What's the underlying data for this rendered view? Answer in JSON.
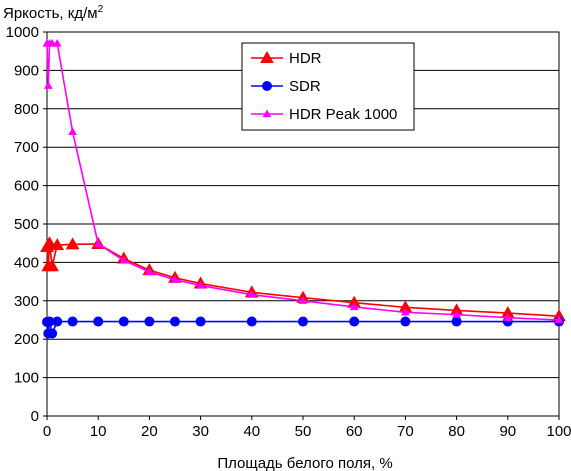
{
  "chart_data": {
    "type": "line",
    "ylabel": "Яркость, кд/м",
    "ylabel_sup": "2",
    "xlabel": "Площадь белого поля, %",
    "xlim": [
      0,
      100
    ],
    "ylim": [
      0,
      1000
    ],
    "x_ticks": [
      0,
      10,
      20,
      30,
      40,
      50,
      60,
      70,
      80,
      90,
      100
    ],
    "y_ticks": [
      0,
      100,
      200,
      300,
      400,
      500,
      600,
      700,
      800,
      900,
      1000
    ],
    "grid": "horizontal",
    "legend_position": "top-center",
    "series": [
      {
        "name": "HDR",
        "color": "#ff0000",
        "marker": "triangle",
        "points": [
          [
            0,
            440
          ],
          [
            0.25,
            390
          ],
          [
            0.5,
            450
          ],
          [
            1,
            390
          ],
          [
            2,
            445
          ],
          [
            5,
            447
          ],
          [
            10,
            448
          ],
          [
            15,
            410
          ],
          [
            20,
            380
          ],
          [
            25,
            360
          ],
          [
            30,
            345
          ],
          [
            40,
            322
          ],
          [
            50,
            308
          ],
          [
            60,
            295
          ],
          [
            70,
            283
          ],
          [
            80,
            275
          ],
          [
            90,
            268
          ],
          [
            100,
            260
          ]
        ]
      },
      {
        "name": "SDR",
        "color": "#0000ff",
        "marker": "circle",
        "points": [
          [
            0,
            245
          ],
          [
            0.25,
            215
          ],
          [
            0.5,
            246
          ],
          [
            1,
            215
          ],
          [
            2,
            246
          ],
          [
            5,
            246
          ],
          [
            10,
            246
          ],
          [
            15,
            246
          ],
          [
            20,
            246
          ],
          [
            25,
            246
          ],
          [
            30,
            246
          ],
          [
            40,
            246
          ],
          [
            50,
            246
          ],
          [
            60,
            246
          ],
          [
            70,
            246
          ],
          [
            80,
            246
          ],
          [
            90,
            246
          ],
          [
            100,
            246
          ]
        ]
      },
      {
        "name": "HDR Peak 1000",
        "color": "#ff00ff",
        "marker": "small-triangle",
        "points": [
          [
            0,
            970
          ],
          [
            0.25,
            860
          ],
          [
            0.5,
            970
          ],
          [
            1,
            970
          ],
          [
            2,
            970
          ],
          [
            5,
            740
          ],
          [
            10,
            448
          ],
          [
            15,
            405
          ],
          [
            20,
            375
          ],
          [
            25,
            355
          ],
          [
            30,
            340
          ],
          [
            40,
            316
          ],
          [
            50,
            300
          ],
          [
            60,
            284
          ],
          [
            70,
            270
          ],
          [
            80,
            264
          ],
          [
            90,
            256
          ],
          [
            100,
            250
          ]
        ]
      }
    ]
  }
}
